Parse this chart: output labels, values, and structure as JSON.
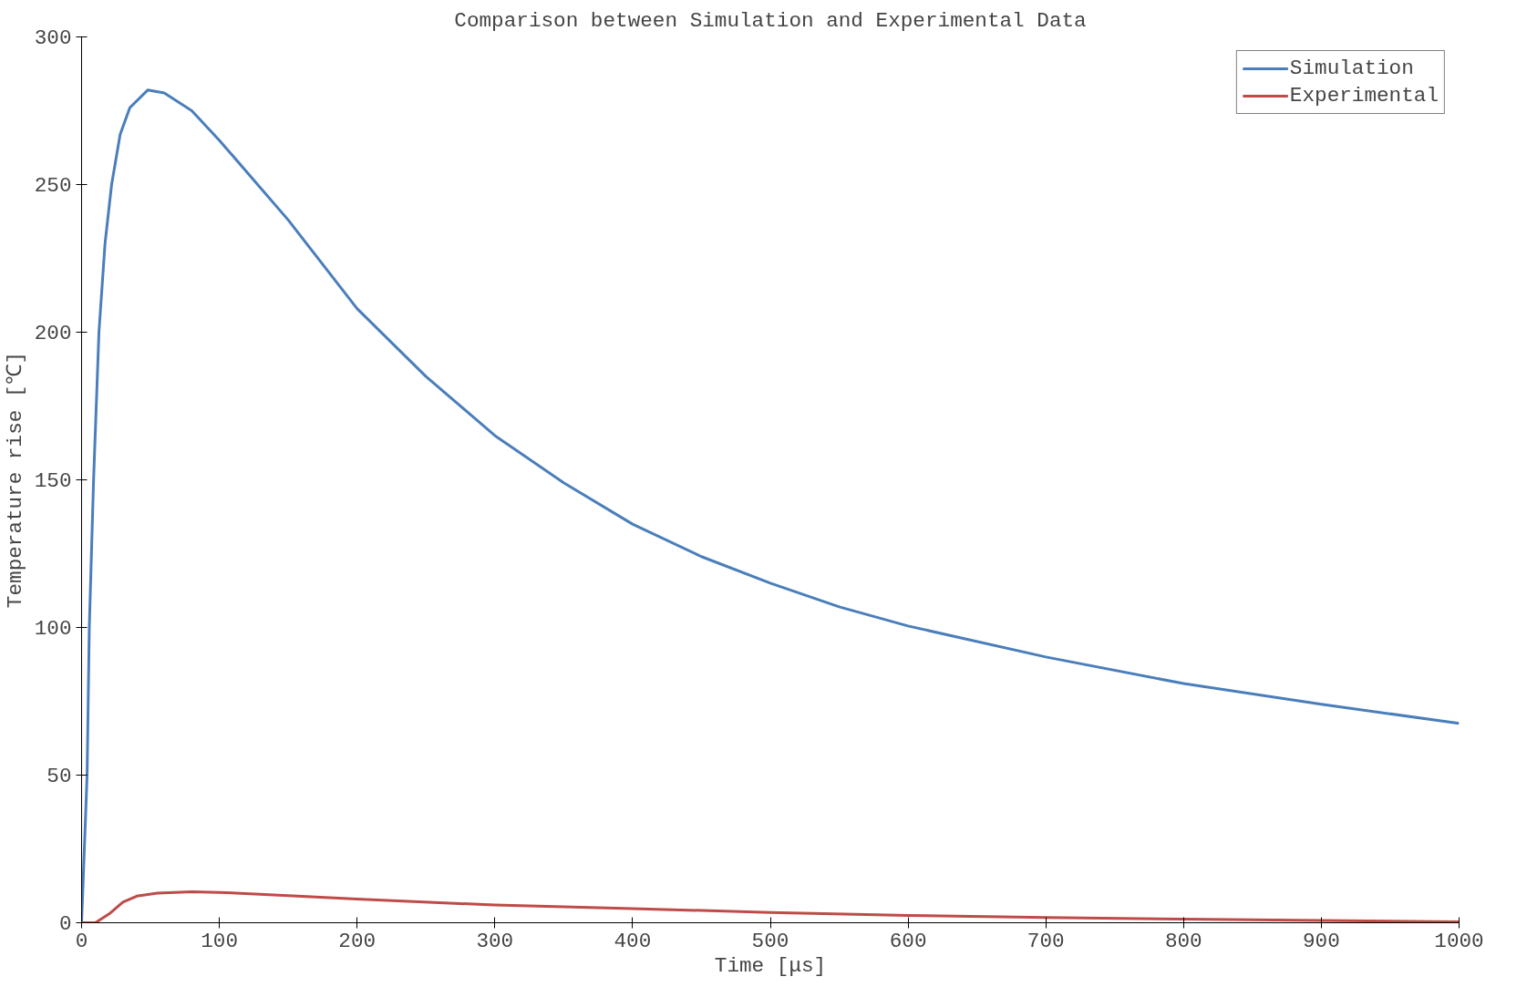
{
  "chart_data": {
    "type": "line",
    "title": "Comparison between Simulation and Experimental Data",
    "xlabel": "Time [μs]",
    "ylabel": "Temperature rise [℃]",
    "xlim": [
      0,
      1000
    ],
    "ylim": [
      0,
      300
    ],
    "xticks": [
      0,
      100,
      200,
      300,
      400,
      500,
      600,
      700,
      800,
      900,
      1000
    ],
    "yticks": [
      0,
      50,
      100,
      150,
      200,
      250,
      300
    ],
    "grid": false,
    "legend": "top right",
    "marker": "none",
    "line_style": "solid",
    "series": [
      {
        "name": "Simulation",
        "color": "#4a7ebb",
        "x": [
          0,
          4,
          5.6,
          8.7,
          12.6,
          17,
          21.8,
          28,
          35,
          48,
          60,
          80,
          100,
          150,
          200,
          250,
          300,
          350,
          400,
          450,
          500,
          550,
          600,
          700,
          800,
          900,
          1000
        ],
        "values": [
          0,
          50,
          100,
          150,
          200,
          230,
          250,
          267,
          276,
          282,
          281,
          275,
          265,
          238,
          208,
          185,
          165,
          149,
          135,
          124,
          115,
          107,
          100.5,
          90,
          81,
          74,
          67.5
        ]
      },
      {
        "name": "Experimental",
        "color": "#be4b48",
        "x": [
          0,
          10,
          20,
          30,
          40,
          55,
          80,
          100,
          150,
          200,
          300,
          400,
          500,
          600,
          700,
          800,
          900,
          1000
        ],
        "values": [
          0,
          0,
          3,
          7,
          9,
          10,
          10.5,
          10.3,
          9.2,
          8,
          6,
          4.8,
          3.5,
          2.5,
          1.8,
          1.2,
          0.8,
          0.3
        ]
      }
    ]
  }
}
